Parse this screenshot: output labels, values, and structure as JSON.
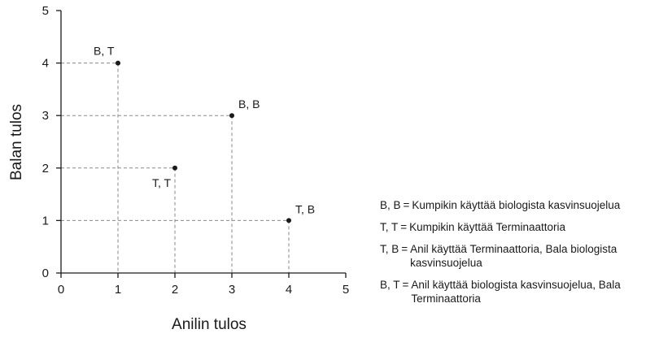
{
  "chart_data": {
    "type": "scatter",
    "title": "",
    "xlabel": "Anilin tulos",
    "ylabel": "Balan tulos",
    "xlim": [
      0,
      5
    ],
    "ylim": [
      0,
      5
    ],
    "xticks": [
      "0",
      "1",
      "2",
      "3",
      "4",
      "5"
    ],
    "yticks": [
      "0",
      "1",
      "2",
      "3",
      "4",
      "5"
    ],
    "grid": false,
    "guide_lines": "dashed lines from each point to both axes",
    "points": [
      {
        "label": "B, T",
        "x": 1,
        "y": 4,
        "label_pos": "above-left"
      },
      {
        "label": "B, B",
        "x": 3,
        "y": 3,
        "label_pos": "above-right"
      },
      {
        "label": "T, T",
        "x": 2,
        "y": 2,
        "label_pos": "below-left"
      },
      {
        "label": "T, B",
        "x": 4,
        "y": 1,
        "label_pos": "above-right"
      }
    ],
    "legend_position": "right",
    "legend": [
      {
        "key": "B, B",
        "text": "Kumpikin käyttää biologista kasvinsuojelua"
      },
      {
        "key": "T, T",
        "text": "Kumpikin käyttää Terminaattoria"
      },
      {
        "key": "T, B",
        "text": "Anil käyttää Terminaattoria, Bala biologista kasvinsuojelua"
      },
      {
        "key": "B, T",
        "text": "Anil käyttää biologista kasvinsuojelua, Bala Terminaattoria"
      }
    ]
  }
}
